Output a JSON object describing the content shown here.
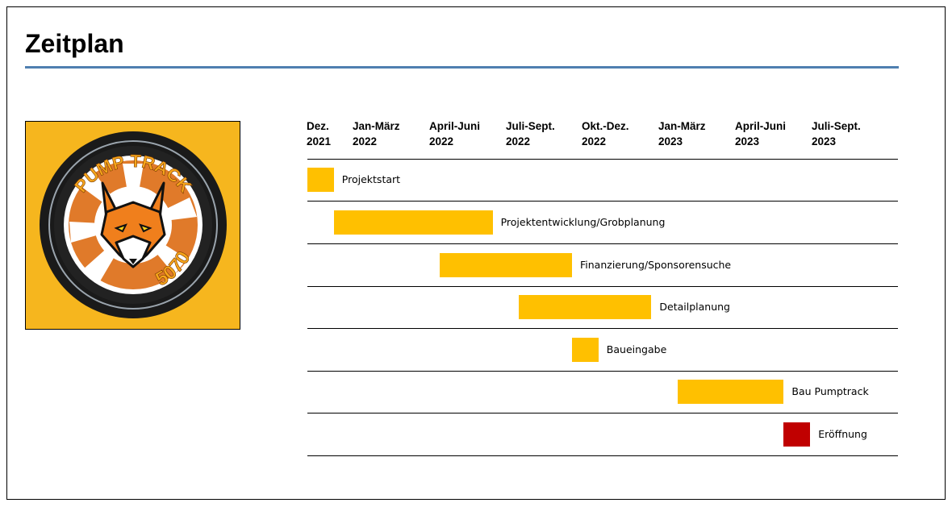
{
  "page": {
    "title": "Zeitplan"
  },
  "logo": {
    "line1": "PUMP TRACK",
    "line2": "5070"
  },
  "chart_data": {
    "type": "gantt",
    "title": "",
    "columns": [
      {
        "line1": "Dez.",
        "line2": "2021"
      },
      {
        "line1": "Jan-März",
        "line2": "2022"
      },
      {
        "line1": "April-Juni",
        "line2": "2022"
      },
      {
        "line1": "Juli-Sept.",
        "line2": "2022"
      },
      {
        "line1": "Okt.-Dez.",
        "line2": "2022"
      },
      {
        "line1": "Jan-März",
        "line2": "2023"
      },
      {
        "line1": "April-Juni",
        "line2": "2023"
      },
      {
        "line1": "Juli-Sept.",
        "line2": "2023"
      }
    ],
    "tasks": [
      {
        "name": "Projektstart",
        "start": "2021-12",
        "end": "2022-01",
        "color": "#ffc000"
      },
      {
        "name": "Projektentwicklung/Grobplanung",
        "start": "2022-01",
        "end": "2022-07",
        "color": "#ffc000"
      },
      {
        "name": "Finanzierung/Sponsorensuche",
        "start": "2022-05",
        "end": "2022-10",
        "color": "#ffc000"
      },
      {
        "name": "Detailplanung",
        "start": "2022-08",
        "end": "2023-01",
        "color": "#ffc000"
      },
      {
        "name": "Baueingabe",
        "start": "2022-10",
        "end": "2022-11",
        "color": "#ffc000"
      },
      {
        "name": "Bau Pumptrack",
        "start": "2023-02",
        "end": "2023-06",
        "color": "#ffc000"
      },
      {
        "name": "Eröffnung",
        "start": "2023-06",
        "end": "2023-07",
        "color": "#c00000"
      }
    ]
  }
}
